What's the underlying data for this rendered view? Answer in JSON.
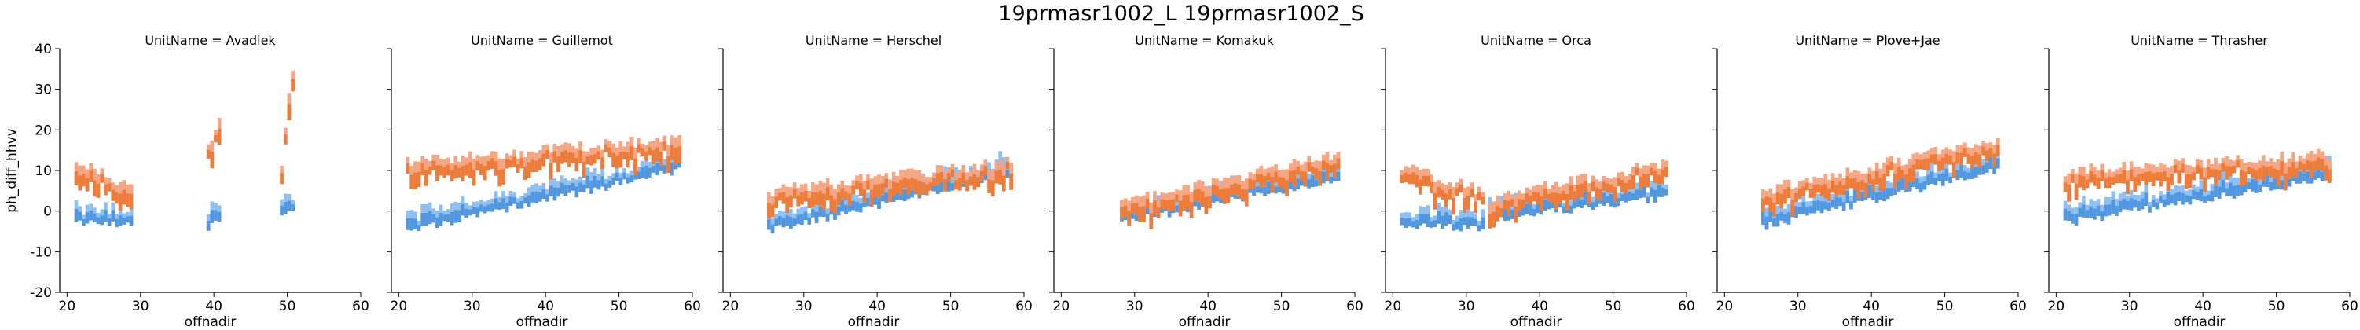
{
  "chart_data": {
    "type": "heatmap",
    "title": "19prmasr1002_L 19prmasr1002_S",
    "facet_variable": "UnitName",
    "facet_separator": " = ",
    "xlabel": "offnadir",
    "ylabel": "ph_diff_hhvv",
    "xlim": [
      19,
      60
    ],
    "ylim": [
      -20,
      40
    ],
    "xticks": [
      20,
      30,
      40,
      50,
      60
    ],
    "yticks": [
      -20,
      -10,
      0,
      10,
      20,
      30,
      40
    ],
    "grid": false,
    "series_colors": [
      "#1f77d4",
      "#e8600a"
    ],
    "series_colors_light": [
      "#8fbff0",
      "#f4a583"
    ],
    "facets": [
      {
        "unit": "Avadlek",
        "segments": [
          {
            "x": [
              21,
              28.5
            ],
            "lower": [
              -3,
              -3
            ],
            "upper": [
              12,
              6
            ]
          },
          {
            "x": [
              39,
              40.5
            ],
            "lower": [
              -4,
              -2
            ],
            "upper": [
              15,
              22
            ]
          },
          {
            "x": [
              49,
              50.5
            ],
            "lower": [
              -2,
              0
            ],
            "upper": [
              12,
              36
            ]
          }
        ]
      },
      {
        "unit": "Guillemot",
        "segments": [
          {
            "x": [
              21,
              58
            ],
            "lower": [
              -5,
              10
            ],
            "upper": [
              12,
              18
            ]
          }
        ]
      },
      {
        "unit": "Herschel",
        "segments": [
          {
            "x": [
              25,
              58
            ],
            "lower": [
              -5,
              9
            ],
            "upper": [
              5,
              12
            ]
          }
        ]
      },
      {
        "unit": "Komakuk",
        "segments": [
          {
            "x": [
              28,
              57.5
            ],
            "lower": [
              -3,
              8
            ],
            "upper": [
              2,
              14
            ]
          }
        ]
      },
      {
        "unit": "Orca",
        "segments": [
          {
            "x": [
              21,
              32
            ],
            "lower": [
              -4,
              -4
            ],
            "upper": [
              11,
              5
            ]
          },
          {
            "x": [
              33,
              57
            ],
            "lower": [
              -2,
              3
            ],
            "upper": [
              3,
              12
            ]
          }
        ]
      },
      {
        "unit": "Plove+Jae",
        "segments": [
          {
            "x": [
              25,
              57
            ],
            "lower": [
              -4,
              10
            ],
            "upper": [
              5,
              18
            ]
          }
        ]
      },
      {
        "unit": "Thrasher",
        "segments": [
          {
            "x": [
              21,
              57
            ],
            "lower": [
              -3,
              8
            ],
            "upper": [
              10,
              14
            ]
          }
        ]
      }
    ]
  }
}
